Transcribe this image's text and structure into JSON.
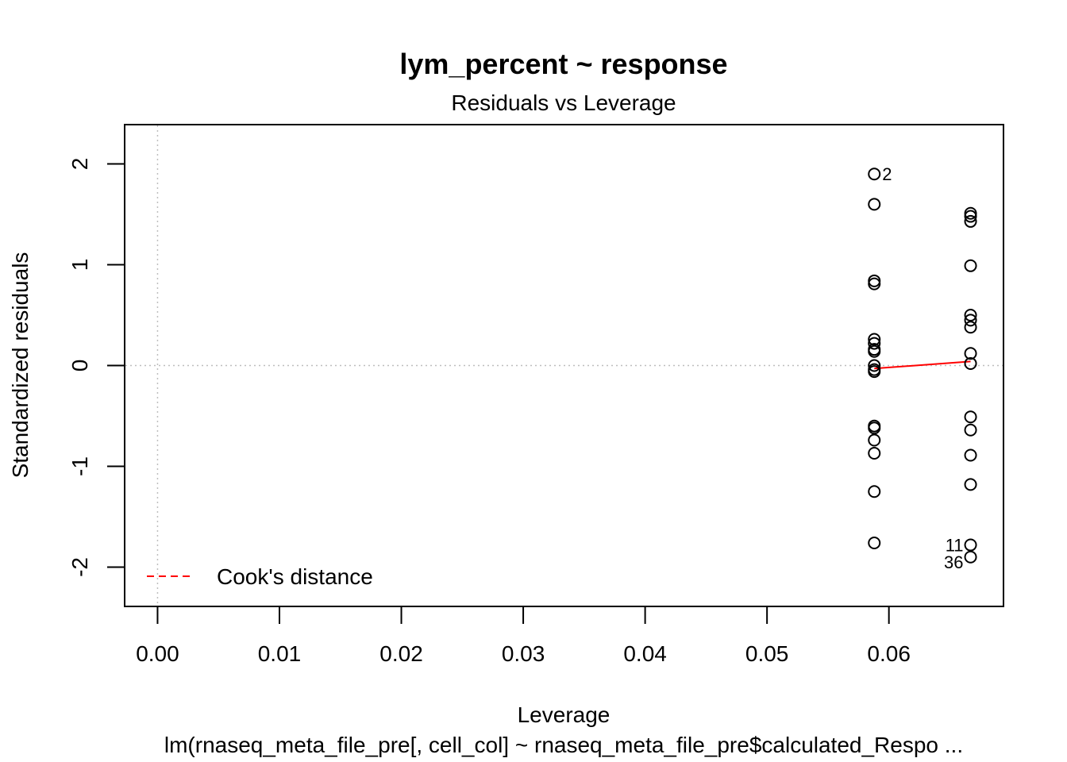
{
  "chart_data": {
    "type": "scatter",
    "title": "lym_percent ~ response",
    "subtitle": "Residuals vs Leverage",
    "xlabel": "Leverage",
    "ylabel": "Standardized residuals",
    "caption": "lm(rnaseq_meta_file_pre[, cell_col] ~ rnaseq_meta_file_pre$calculated_Respo ...",
    "xlim": [
      -0.0027,
      0.0694
    ],
    "ylim": [
      -2.39,
      2.39
    ],
    "x_ticks": [
      0.0,
      0.01,
      0.02,
      0.03,
      0.04,
      0.05,
      0.06
    ],
    "x_tick_labels": [
      "0.00",
      "0.01",
      "0.02",
      "0.03",
      "0.04",
      "0.05",
      "0.06"
    ],
    "y_ticks": [
      -2,
      -1,
      0,
      1,
      2
    ],
    "y_tick_labels": [
      "-2",
      "-1",
      "0",
      "1",
      "2"
    ],
    "grid": false,
    "reference_lines": {
      "x": 0,
      "y": 0,
      "color": "#bebebe",
      "style": "dotted"
    },
    "colors": {
      "points": "#000000",
      "smoother": "#ff0000",
      "reference": "#bebebe",
      "cooks": "#ff0000"
    },
    "points": [
      {
        "x": 0.0588,
        "y": 1.9,
        "label": "2"
      },
      {
        "x": 0.0588,
        "y": 1.6
      },
      {
        "x": 0.0588,
        "y": 0.84
      },
      {
        "x": 0.0588,
        "y": 0.81
      },
      {
        "x": 0.0588,
        "y": 0.26
      },
      {
        "x": 0.0588,
        "y": 0.22
      },
      {
        "x": 0.0588,
        "y": 0.16
      },
      {
        "x": 0.0588,
        "y": 0.14
      },
      {
        "x": 0.0588,
        "y": 0.0
      },
      {
        "x": 0.0588,
        "y": -0.04
      },
      {
        "x": 0.0588,
        "y": -0.06
      },
      {
        "x": 0.0588,
        "y": -0.6
      },
      {
        "x": 0.0588,
        "y": -0.62
      },
      {
        "x": 0.0588,
        "y": -0.74
      },
      {
        "x": 0.0588,
        "y": -0.87
      },
      {
        "x": 0.0588,
        "y": -1.25
      },
      {
        "x": 0.0588,
        "y": -1.76
      },
      {
        "x": 0.0667,
        "y": 1.51
      },
      {
        "x": 0.0667,
        "y": 1.48
      },
      {
        "x": 0.0667,
        "y": 1.43
      },
      {
        "x": 0.0667,
        "y": 0.99
      },
      {
        "x": 0.0667,
        "y": 0.5
      },
      {
        "x": 0.0667,
        "y": 0.45
      },
      {
        "x": 0.0667,
        "y": 0.38
      },
      {
        "x": 0.0667,
        "y": 0.12
      },
      {
        "x": 0.0667,
        "y": 0.02
      },
      {
        "x": 0.0667,
        "y": -0.51
      },
      {
        "x": 0.0667,
        "y": -0.64
      },
      {
        "x": 0.0667,
        "y": -0.89
      },
      {
        "x": 0.0667,
        "y": -1.18
      },
      {
        "x": 0.0667,
        "y": -1.78,
        "label": "11"
      },
      {
        "x": 0.0667,
        "y": -1.9,
        "label": "36"
      }
    ],
    "smoother": [
      {
        "x": 0.0588,
        "y": -0.03
      },
      {
        "x": 0.0667,
        "y": 0.04
      }
    ],
    "legend": {
      "position": "bottom-left",
      "entries": [
        {
          "label": "Cook's distance",
          "color": "#ff0000",
          "style": "dashed"
        }
      ]
    }
  }
}
